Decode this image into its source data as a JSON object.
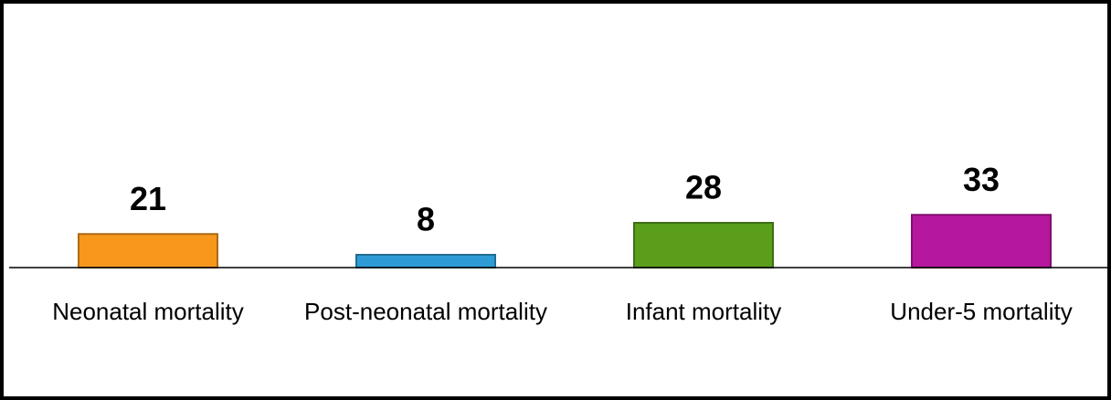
{
  "chart_data": {
    "type": "bar",
    "categories": [
      "Neonatal mortality",
      "Post-neonatal mortality",
      "Infant mortality",
      "Under-5 mortality"
    ],
    "values": [
      21,
      8,
      28,
      33
    ],
    "colors": [
      "#f7981d",
      "#2e9bd6",
      "#5a9e1c",
      "#b5179e"
    ],
    "ylim": [
      0,
      165
    ]
  }
}
